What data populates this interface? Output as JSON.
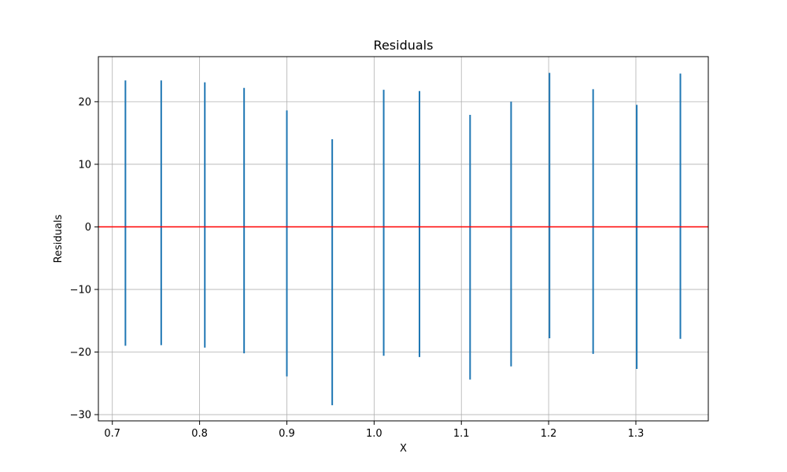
{
  "chart_data": {
    "type": "vlines",
    "title": "Residuals",
    "xlabel": "X",
    "ylabel": "Residuals",
    "xlim": [
      0.684,
      1.383
    ],
    "ylim": [
      -31.0,
      27.2
    ],
    "x_ticks": [
      0.7,
      0.8,
      0.9,
      1.0,
      1.1,
      1.2,
      1.3
    ],
    "x_tick_labels": [
      "0.7",
      "0.8",
      "0.9",
      "1.0",
      "1.1",
      "1.2",
      "1.3"
    ],
    "y_ticks": [
      -30,
      -20,
      -10,
      0,
      10,
      20
    ],
    "y_tick_labels": [
      "−30",
      "−20",
      "−10",
      "0",
      "10",
      "20"
    ],
    "grid": true,
    "series": [
      {
        "color": "#1f77b4",
        "points": [
          {
            "x": 0.715,
            "ymin": -19.0,
            "ymax": 23.4
          },
          {
            "x": 0.756,
            "ymin": -18.9,
            "ymax": 23.4
          },
          {
            "x": 0.806,
            "ymin": -19.3,
            "ymax": 23.1
          },
          {
            "x": 0.851,
            "ymin": -20.2,
            "ymax": 22.2
          },
          {
            "x": 0.9,
            "ymin": -23.9,
            "ymax": 18.6
          },
          {
            "x": 0.952,
            "ymin": -28.5,
            "ymax": 14.0
          },
          {
            "x": 1.011,
            "ymin": -20.6,
            "ymax": 21.9
          },
          {
            "x": 1.052,
            "ymin": -20.8,
            "ymax": 21.7
          },
          {
            "x": 1.11,
            "ymin": -24.4,
            "ymax": 17.9
          },
          {
            "x": 1.157,
            "ymin": -22.3,
            "ymax": 20.0
          },
          {
            "x": 1.201,
            "ymin": -17.8,
            "ymax": 24.6
          },
          {
            "x": 1.251,
            "ymin": -20.3,
            "ymax": 22.0
          },
          {
            "x": 1.301,
            "ymin": -22.7,
            "ymax": 19.5
          },
          {
            "x": 1.351,
            "ymin": -17.9,
            "ymax": 24.5
          }
        ]
      }
    ],
    "reference_line": {
      "y": 0,
      "color": "#ff0000"
    }
  }
}
